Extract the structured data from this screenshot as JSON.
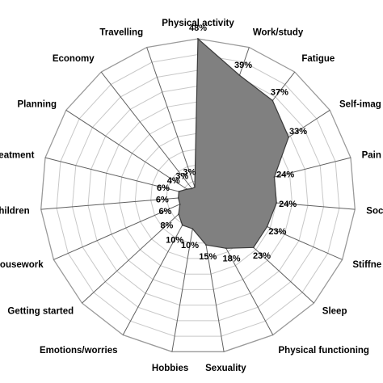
{
  "chart_data": {
    "type": "radar",
    "title": "",
    "axes": [
      "Physical activity",
      "Work/study",
      "Fatigue",
      "Self-image",
      "Pain",
      "Social life",
      "Stiffness",
      "Sleep",
      "Physical functioning",
      "Sexuality",
      "Hobbies",
      "Emotions/worries",
      "Getting started",
      "Housework",
      "Children",
      "Treatment",
      "Planning",
      "Economy",
      "Travelling"
    ],
    "visible_labels": [
      "Physical activity",
      "Work/study",
      "Fatigue",
      "Self-imag",
      "Pain",
      "Soc",
      "Stiffne",
      "Sleep",
      "Physical functioning",
      "Sexuality",
      "Hobbies",
      "Emotions/worries",
      "Getting started",
      "ousework",
      "hildren",
      "eatment",
      "Planning",
      "Economy",
      "Travelling"
    ],
    "values": [
      48,
      39,
      37,
      33,
      24,
      24,
      23,
      23,
      18,
      15,
      10,
      10,
      8,
      6,
      6,
      6,
      4,
      3,
      3
    ],
    "value_labels": [
      "48%",
      "39%",
      "37%",
      "33%",
      "24%",
      "24%",
      "23%",
      "23%",
      "18%",
      "15%",
      "10%",
      "10%",
      "8%",
      "6%",
      "6%",
      "6%",
      "4%",
      "3%",
      "3%"
    ],
    "rmax": 48,
    "grid_rings": 10,
    "fill_color": "#808080",
    "grid_color": "#c8c8c8",
    "spoke_color": "#606060"
  }
}
